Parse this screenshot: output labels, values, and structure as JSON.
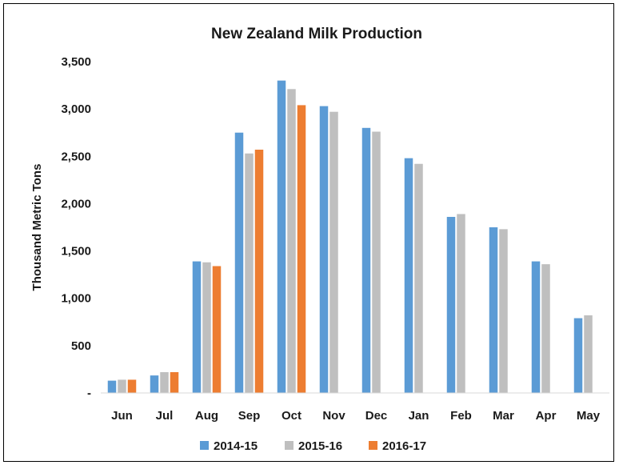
{
  "chart_data": {
    "type": "bar",
    "title": "New Zealand Milk Production",
    "xlabel": "",
    "ylabel": "Thousand Metric Tons",
    "ylim": [
      0,
      3500
    ],
    "yticks": [
      0,
      500,
      1000,
      1500,
      2000,
      2500,
      3000,
      3500
    ],
    "ytick_labels": [
      "-",
      "500",
      "1,000",
      "1,500",
      "2,000",
      "2,500",
      "3,000",
      "3,500"
    ],
    "categories": [
      "Jun",
      "Jul",
      "Aug",
      "Sep",
      "Oct",
      "Nov",
      "Dec",
      "Jan",
      "Feb",
      "Mar",
      "Apr",
      "May"
    ],
    "grid": false,
    "legend_position": "bottom",
    "series": [
      {
        "name": "2014-15",
        "color": "#5b9bd5",
        "values": [
          130,
          185,
          1390,
          2750,
          3300,
          3030,
          2800,
          2480,
          1860,
          1750,
          1390,
          790
        ]
      },
      {
        "name": "2015-16",
        "color": "#bfbfbf",
        "values": [
          140,
          220,
          1380,
          2530,
          3210,
          2970,
          2760,
          2420,
          1890,
          1730,
          1360,
          820
        ]
      },
      {
        "name": "2016-17",
        "color": "#ed7d31",
        "values": [
          140,
          220,
          1340,
          2570,
          3040,
          null,
          null,
          null,
          null,
          null,
          null,
          null
        ]
      }
    ]
  }
}
